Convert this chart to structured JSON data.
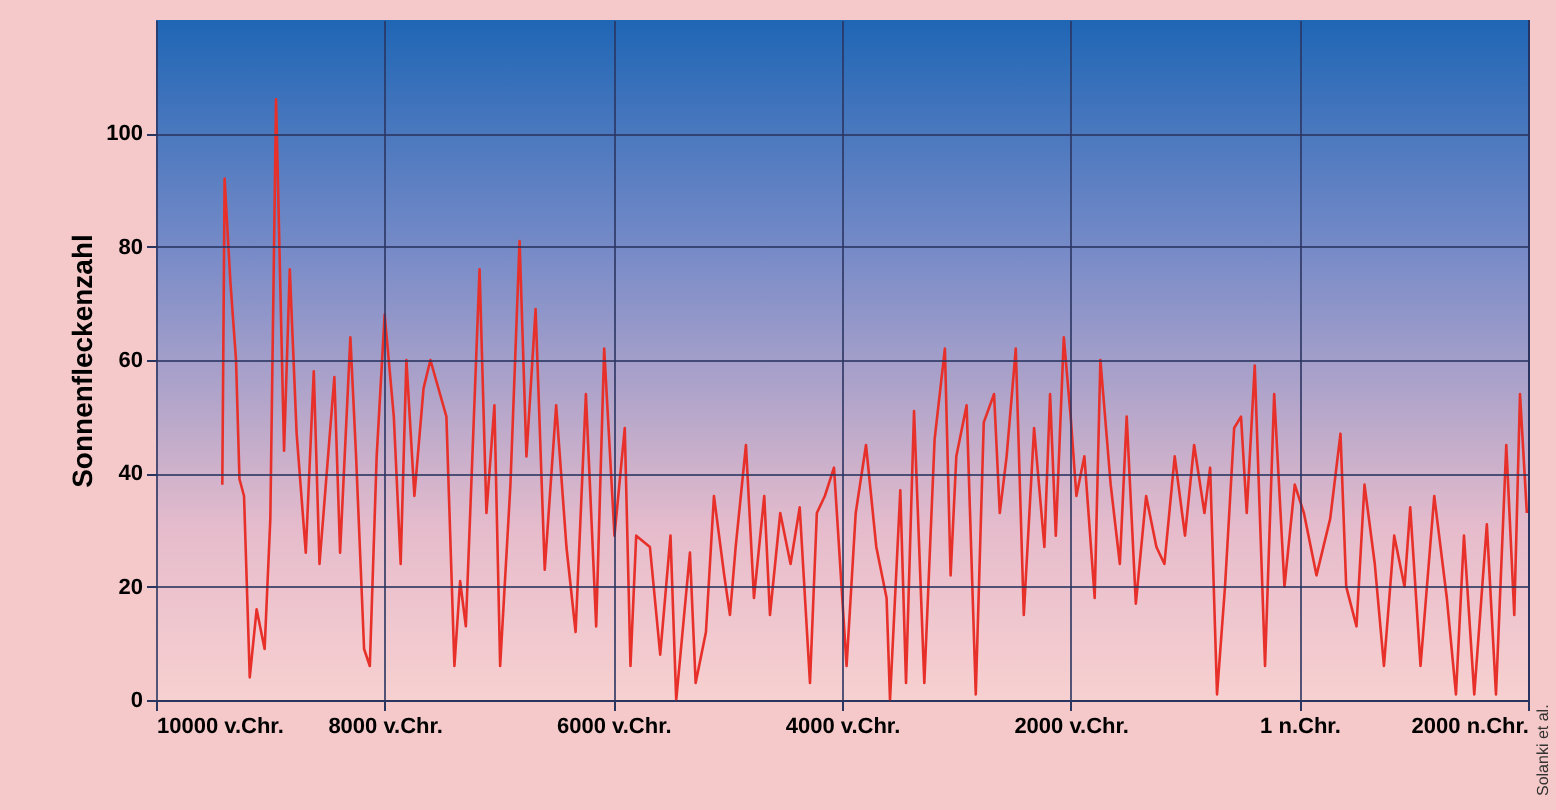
{
  "chart_data": {
    "type": "line",
    "ylabel": "Sonnenfleckenzahl",
    "annotations": [
      "Solanki et al."
    ],
    "xlim": [
      -10000,
      2000
    ],
    "ylim": [
      0,
      120
    ],
    "yticks": [
      0,
      20,
      40,
      60,
      80,
      100
    ],
    "xticks": [
      {
        "value": -10000,
        "label": "10000 v.Chr."
      },
      {
        "value": -8000,
        "label": "8000 v.Chr."
      },
      {
        "value": -6000,
        "label": "6000 v.Chr."
      },
      {
        "value": -4000,
        "label": "4000 v.Chr."
      },
      {
        "value": -2000,
        "label": "2000 v.Chr."
      },
      {
        "value": 1,
        "label": "1 n.Chr."
      },
      {
        "value": 2000,
        "label": "2000 n.Chr."
      }
    ],
    "grid": true,
    "marker": "none",
    "line_style": "solid",
    "series": [
      {
        "color": "#e8302a",
        "x": [
          -9420,
          -9400,
          -9350,
          -9300,
          -9270,
          -9230,
          -9180,
          -9120,
          -9050,
          -9000,
          -8950,
          -8880,
          -8830,
          -8770,
          -8690,
          -8620,
          -8570,
          -8440,
          -8390,
          -8300,
          -8250,
          -8180,
          -8130,
          -8070,
          -8000,
          -7920,
          -7860,
          -7810,
          -7740,
          -7660,
          -7600,
          -7460,
          -7390,
          -7340,
          -7290,
          -7170,
          -7110,
          -7040,
          -6990,
          -6900,
          -6820,
          -6760,
          -6680,
          -6600,
          -6500,
          -6410,
          -6330,
          -6240,
          -6150,
          -6080,
          -5990,
          -5900,
          -5850,
          -5800,
          -5680,
          -5590,
          -5500,
          -5450,
          -5330,
          -5280,
          -5190,
          -5120,
          -5030,
          -4980,
          -4930,
          -4840,
          -4770,
          -4680,
          -4630,
          -4540,
          -4450,
          -4370,
          -4280,
          -4220,
          -4150,
          -4070,
          -3960,
          -3880,
          -3790,
          -3700,
          -3610,
          -3580,
          -3490,
          -3440,
          -3370,
          -3280,
          -3190,
          -3100,
          -3050,
          -3000,
          -2910,
          -2830,
          -2760,
          -2670,
          -2620,
          -2560,
          -2480,
          -2410,
          -2320,
          -2230,
          -2180,
          -2130,
          -2060,
          -2000,
          -1950,
          -1880,
          -1790,
          -1740,
          -1650,
          -1570,
          -1510,
          -1430,
          -1340,
          -1250,
          -1180,
          -1090,
          -1000,
          -920,
          -830,
          -780,
          -720,
          -650,
          -570,
          -510,
          -460,
          -390,
          -300,
          -220,
          -130,
          -40,
          40,
          150,
          270,
          360,
          410,
          500,
          570,
          660,
          740,
          830,
          920,
          970,
          1060,
          1180,
          1290,
          1370,
          1440,
          1530,
          1640,
          1720,
          1810,
          1880,
          1930,
          1990
        ],
        "values": [
          38,
          92,
          74,
          60,
          39,
          36,
          4,
          16,
          9,
          32,
          106,
          44,
          76,
          47,
          26,
          58,
          24,
          57,
          26,
          64,
          43,
          9,
          6,
          43,
          68,
          50,
          24,
          60,
          36,
          55,
          60,
          50,
          6,
          21,
          13,
          76,
          33,
          52,
          6,
          38,
          81,
          43,
          69,
          23,
          52,
          27,
          12,
          54,
          13,
          62,
          29,
          48,
          6,
          29,
          27,
          8,
          29,
          0,
          26,
          3,
          12,
          36,
          22,
          15,
          27,
          45,
          18,
          36,
          15,
          33,
          24,
          34,
          3,
          33,
          36,
          41,
          6,
          33,
          45,
          27,
          18,
          0,
          37,
          3,
          51,
          3,
          46,
          62,
          22,
          43,
          52,
          1,
          49,
          54,
          33,
          43,
          62,
          15,
          48,
          27,
          54,
          29,
          64,
          50,
          36,
          43,
          18,
          60,
          38,
          24,
          50,
          17,
          36,
          27,
          24,
          43,
          29,
          45,
          33,
          41,
          1,
          20,
          48,
          50,
          33,
          59,
          6,
          54,
          20,
          38,
          33,
          22,
          32,
          47,
          20,
          13,
          38,
          24,
          6,
          29,
          20,
          34,
          6,
          36,
          18,
          1,
          29,
          1,
          31,
          1,
          45,
          15,
          54,
          33
        ]
      }
    ]
  }
}
